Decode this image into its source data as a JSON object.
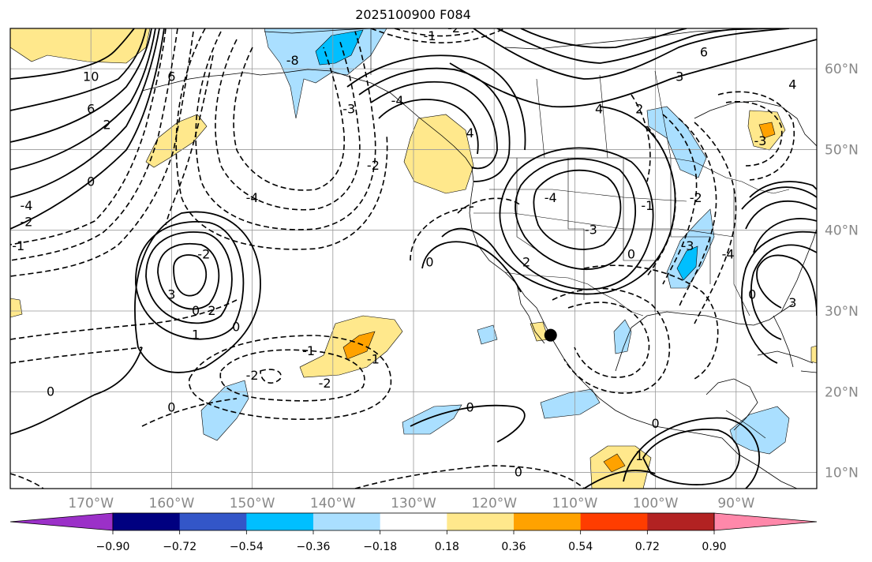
{
  "title": "2025100900 F084",
  "map": {
    "projection": "cylindrical",
    "lon_range": [
      -180,
      -80
    ],
    "lat_range": [
      8,
      65
    ],
    "gridlines": true,
    "latitude_labels": [
      "10°N",
      "20°N",
      "30°N",
      "40°N",
      "50°N",
      "60°N"
    ],
    "longitude_labels": [
      "170°W",
      "160°W",
      "150°W",
      "140°W",
      "130°W",
      "120°W",
      "110°W",
      "100°W",
      "90°W"
    ],
    "marker": {
      "name": "location-dot",
      "lon": -113,
      "lat": 27
    },
    "contour_labels": [
      {
        "text": "10",
        "lon": -170,
        "lat": 59
      },
      {
        "text": "6",
        "lon": -170,
        "lat": 55
      },
      {
        "text": "2",
        "lon": -168,
        "lat": 53
      },
      {
        "text": "6",
        "lon": -160,
        "lat": 59
      },
      {
        "text": "-8",
        "lon": -145,
        "lat": 61
      },
      {
        "text": "-4",
        "lon": -178,
        "lat": 43
      },
      {
        "text": "-2",
        "lon": -178,
        "lat": 41
      },
      {
        "text": "0",
        "lon": -170,
        "lat": 46
      },
      {
        "text": "-3",
        "lon": -138,
        "lat": 55
      },
      {
        "text": "-2",
        "lon": -135,
        "lat": 48
      },
      {
        "text": "-4",
        "lon": -150,
        "lat": 44
      },
      {
        "text": "-1",
        "lon": -179,
        "lat": 38
      },
      {
        "text": "-2",
        "lon": -156,
        "lat": 37
      },
      {
        "text": "0",
        "lon": -157,
        "lat": 30
      },
      {
        "text": "3",
        "lon": -160,
        "lat": 32
      },
      {
        "text": "2",
        "lon": -155,
        "lat": 30
      },
      {
        "text": "1",
        "lon": -157,
        "lat": 27
      },
      {
        "text": "0",
        "lon": -152,
        "lat": 28
      },
      {
        "text": "-1",
        "lon": -143,
        "lat": 25
      },
      {
        "text": "-2",
        "lon": -150,
        "lat": 22
      },
      {
        "text": "-2",
        "lon": -141,
        "lat": 21
      },
      {
        "text": "-1",
        "lon": -135,
        "lat": 24
      },
      {
        "text": "0",
        "lon": -175,
        "lat": 20
      },
      {
        "text": "0",
        "lon": -160,
        "lat": 18
      },
      {
        "text": "0",
        "lon": -123,
        "lat": 18
      },
      {
        "text": "-1",
        "lon": -128,
        "lat": 64
      },
      {
        "text": "-2",
        "lon": -125,
        "lat": 65
      },
      {
        "text": "4",
        "lon": -123,
        "lat": 52
      },
      {
        "text": "-4",
        "lon": -132,
        "lat": 56
      },
      {
        "text": "0",
        "lon": -128,
        "lat": 36
      },
      {
        "text": "-4",
        "lon": -113,
        "lat": 44
      },
      {
        "text": "-3",
        "lon": -108,
        "lat": 40
      },
      {
        "text": "0",
        "lon": -103,
        "lat": 37
      },
      {
        "text": "2",
        "lon": -116,
        "lat": 36
      },
      {
        "text": "4",
        "lon": -107,
        "lat": 55
      },
      {
        "text": "2",
        "lon": -102,
        "lat": 55
      },
      {
        "text": "6",
        "lon": -94,
        "lat": 62
      },
      {
        "text": "3",
        "lon": -97,
        "lat": 59
      },
      {
        "text": "-1",
        "lon": -101,
        "lat": 43
      },
      {
        "text": "-2",
        "lon": -95,
        "lat": 44
      },
      {
        "text": "-3",
        "lon": -96,
        "lat": 38
      },
      {
        "text": "-3",
        "lon": -87,
        "lat": 51
      },
      {
        "text": "4",
        "lon": -83,
        "lat": 58
      },
      {
        "text": "-4",
        "lon": -91,
        "lat": 37
      },
      {
        "text": "0",
        "lon": -88,
        "lat": 32
      },
      {
        "text": "3",
        "lon": -83,
        "lat": 31
      },
      {
        "text": "0",
        "lon": -100,
        "lat": 16
      },
      {
        "text": "1",
        "lon": -102,
        "lat": 12
      },
      {
        "text": "0",
        "lon": -117,
        "lat": 10
      }
    ]
  },
  "colorbar": {
    "ticks": [
      "−0.90",
      "−0.72",
      "−0.54",
      "−0.36",
      "−0.18",
      "0.18",
      "0.36",
      "0.54",
      "0.72",
      "0.90"
    ],
    "colors": [
      "#9b30c8",
      "#000080",
      "#3356c8",
      "#00bfff",
      "#aadfff",
      "#ffffff",
      "#ffe88c",
      "#ffa200",
      "#ff3d00",
      "#b22222",
      "#ff88aa"
    ]
  }
}
